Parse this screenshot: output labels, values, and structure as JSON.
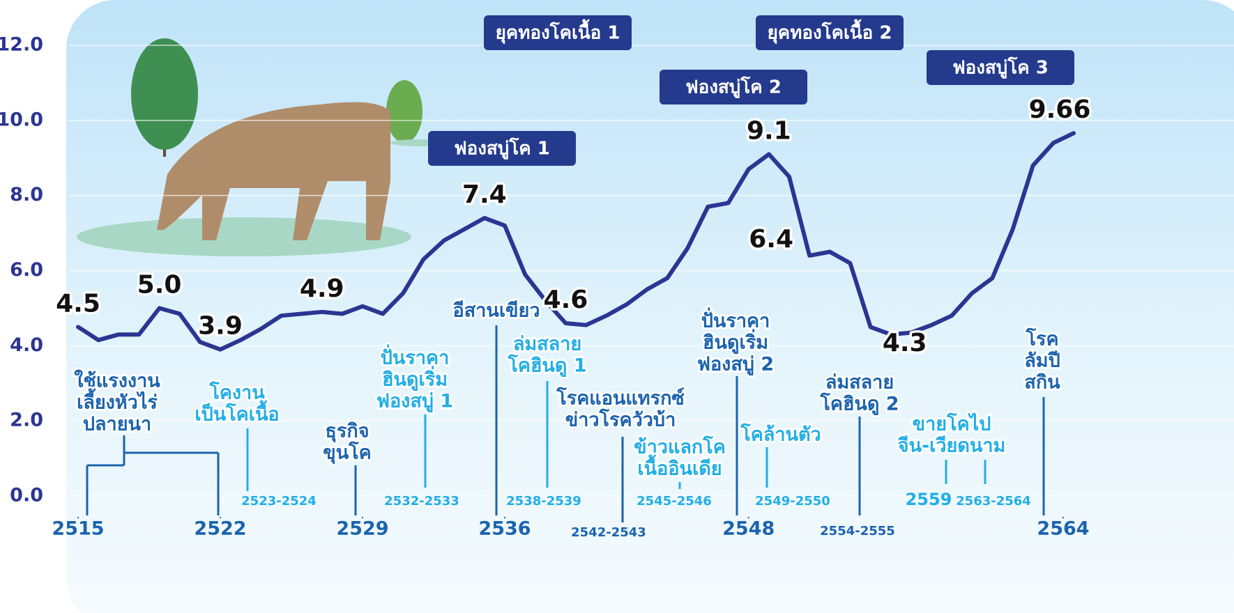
{
  "chart_data": {
    "type": "line",
    "x": [
      2515,
      2516,
      2517,
      2518,
      2519,
      2520,
      2521,
      2522,
      2523,
      2524,
      2525,
      2526,
      2527,
      2528,
      2529,
      2530,
      2531,
      2532,
      2533,
      2534,
      2535,
      2536,
      2537,
      2538,
      2539,
      2540,
      2541,
      2542,
      2543,
      2544,
      2545,
      2546,
      2547,
      2548,
      2549,
      2550,
      2551,
      2552,
      2553,
      2554,
      2555,
      2556,
      2557,
      2558,
      2559,
      2560,
      2561,
      2562,
      2563,
      2564
    ],
    "series": [
      {
        "color": "#2b3592",
        "values": [
          4.5,
          4.15,
          4.3,
          4.3,
          5.0,
          4.85,
          4.1,
          3.9,
          4.15,
          4.45,
          4.8,
          4.85,
          4.9,
          4.85,
          5.05,
          4.85,
          5.4,
          6.3,
          6.8,
          7.1,
          7.4,
          7.2,
          5.9,
          5.2,
          4.6,
          4.55,
          4.8,
          5.1,
          5.5,
          5.8,
          6.6,
          7.7,
          7.8,
          8.7,
          9.1,
          8.5,
          6.4,
          6.5,
          6.2,
          4.5,
          4.3,
          4.35,
          4.55,
          4.8,
          5.4,
          5.8,
          7.1,
          8.8,
          9.4,
          9.66
        ],
        "value_labels": [
          "4.5",
          null,
          null,
          null,
          "5.0",
          null,
          null,
          "3.9",
          null,
          null,
          null,
          null,
          "4.9",
          null,
          null,
          null,
          null,
          null,
          null,
          null,
          "7.4",
          null,
          null,
          null,
          "4.6",
          null,
          null,
          null,
          null,
          null,
          null,
          null,
          null,
          null,
          "9.1",
          null,
          "6.4",
          null,
          null,
          null,
          "4.3",
          null,
          null,
          null,
          null,
          null,
          null,
          null,
          null,
          "9.66"
        ]
      }
    ],
    "xlim": [
      2515,
      2564
    ],
    "xticks": [
      2515,
      2522,
      2529,
      2536,
      2548,
      2564
    ],
    "ylim": [
      0,
      12
    ],
    "yticks": [
      {
        "value": 0,
        "label": "0.0"
      },
      {
        "value": 2,
        "label": "2.0"
      },
      {
        "value": 4,
        "label": "4.0"
      },
      {
        "value": 6,
        "label": "6.0"
      },
      {
        "value": 8,
        "label": "8.0"
      },
      {
        "value": 10,
        "label": "10.0"
      },
      {
        "value": 12,
        "label": "12.0"
      }
    ],
    "grid": true,
    "eras": [
      "ฟองสบู่โค 1",
      "ยุคทองโคเนื้อ 1",
      "ฟองสบู่โค 2",
      "ยุคทองโคเนื้อ 2",
      "ฟองสบู่โค 3"
    ],
    "events": [
      {
        "lines": [
          "ใช้แรงงาน",
          "เลี้ยงหัวไร่",
          "ปลายนา"
        ],
        "color": "#1b63ae"
      },
      {
        "lines": [
          "โคงาน",
          "เป็นโคเนื้อ"
        ],
        "periods": [
          "2523-2524"
        ],
        "color": "#22aee6"
      },
      {
        "lines": [
          "ธุรกิจ",
          "ขุนโค"
        ],
        "color": "#1b63ae"
      },
      {
        "lines": [
          "ปั่นราคา",
          "ฮินดูเริ่ม",
          "ฟองสบู่ 1"
        ],
        "periods": [
          "2532-2533"
        ],
        "color": "#22aee6"
      },
      {
        "lines": [
          "อีสานเขียว"
        ],
        "color": "#1b63ae"
      },
      {
        "lines": [
          "ล่มสลาย",
          "โคฮินดู 1"
        ],
        "periods": [
          "2538-2539"
        ],
        "color": "#22aee6"
      },
      {
        "lines": [
          "โรคแอนแทรกซ์",
          "ข่าวโรควัวบ้า"
        ],
        "periods": [
          "2542-2543"
        ],
        "color": "#1b63ae"
      },
      {
        "lines": [
          "ข้าวแลกโค",
          "เนื้ออินเดีย"
        ],
        "periods": [
          "2545-2546"
        ],
        "color": "#22aee6"
      },
      {
        "lines": [
          "ปั่นราคา",
          "ฮินดูเริ่ม",
          "ฟองสบู่ 2"
        ],
        "color": "#1b63ae"
      },
      {
        "lines": [
          "โคล้านตัว"
        ],
        "periods": [
          "2549-2550"
        ],
        "color": "#22aee6"
      },
      {
        "lines": [
          "ล่มสลาย",
          "โคฮินดู 2"
        ],
        "periods": [
          "2554-2555"
        ],
        "color": "#1b63ae"
      },
      {
        "lines": [
          "ขายโคไป",
          "จีน-เวียดนาม"
        ],
        "periods": [
          "2559",
          "2563-2564"
        ],
        "color": "#22aee6"
      },
      {
        "lines": [
          "โรค",
          "ลัมปี",
          "สกิน"
        ],
        "color": "#1b63ae"
      }
    ]
  }
}
